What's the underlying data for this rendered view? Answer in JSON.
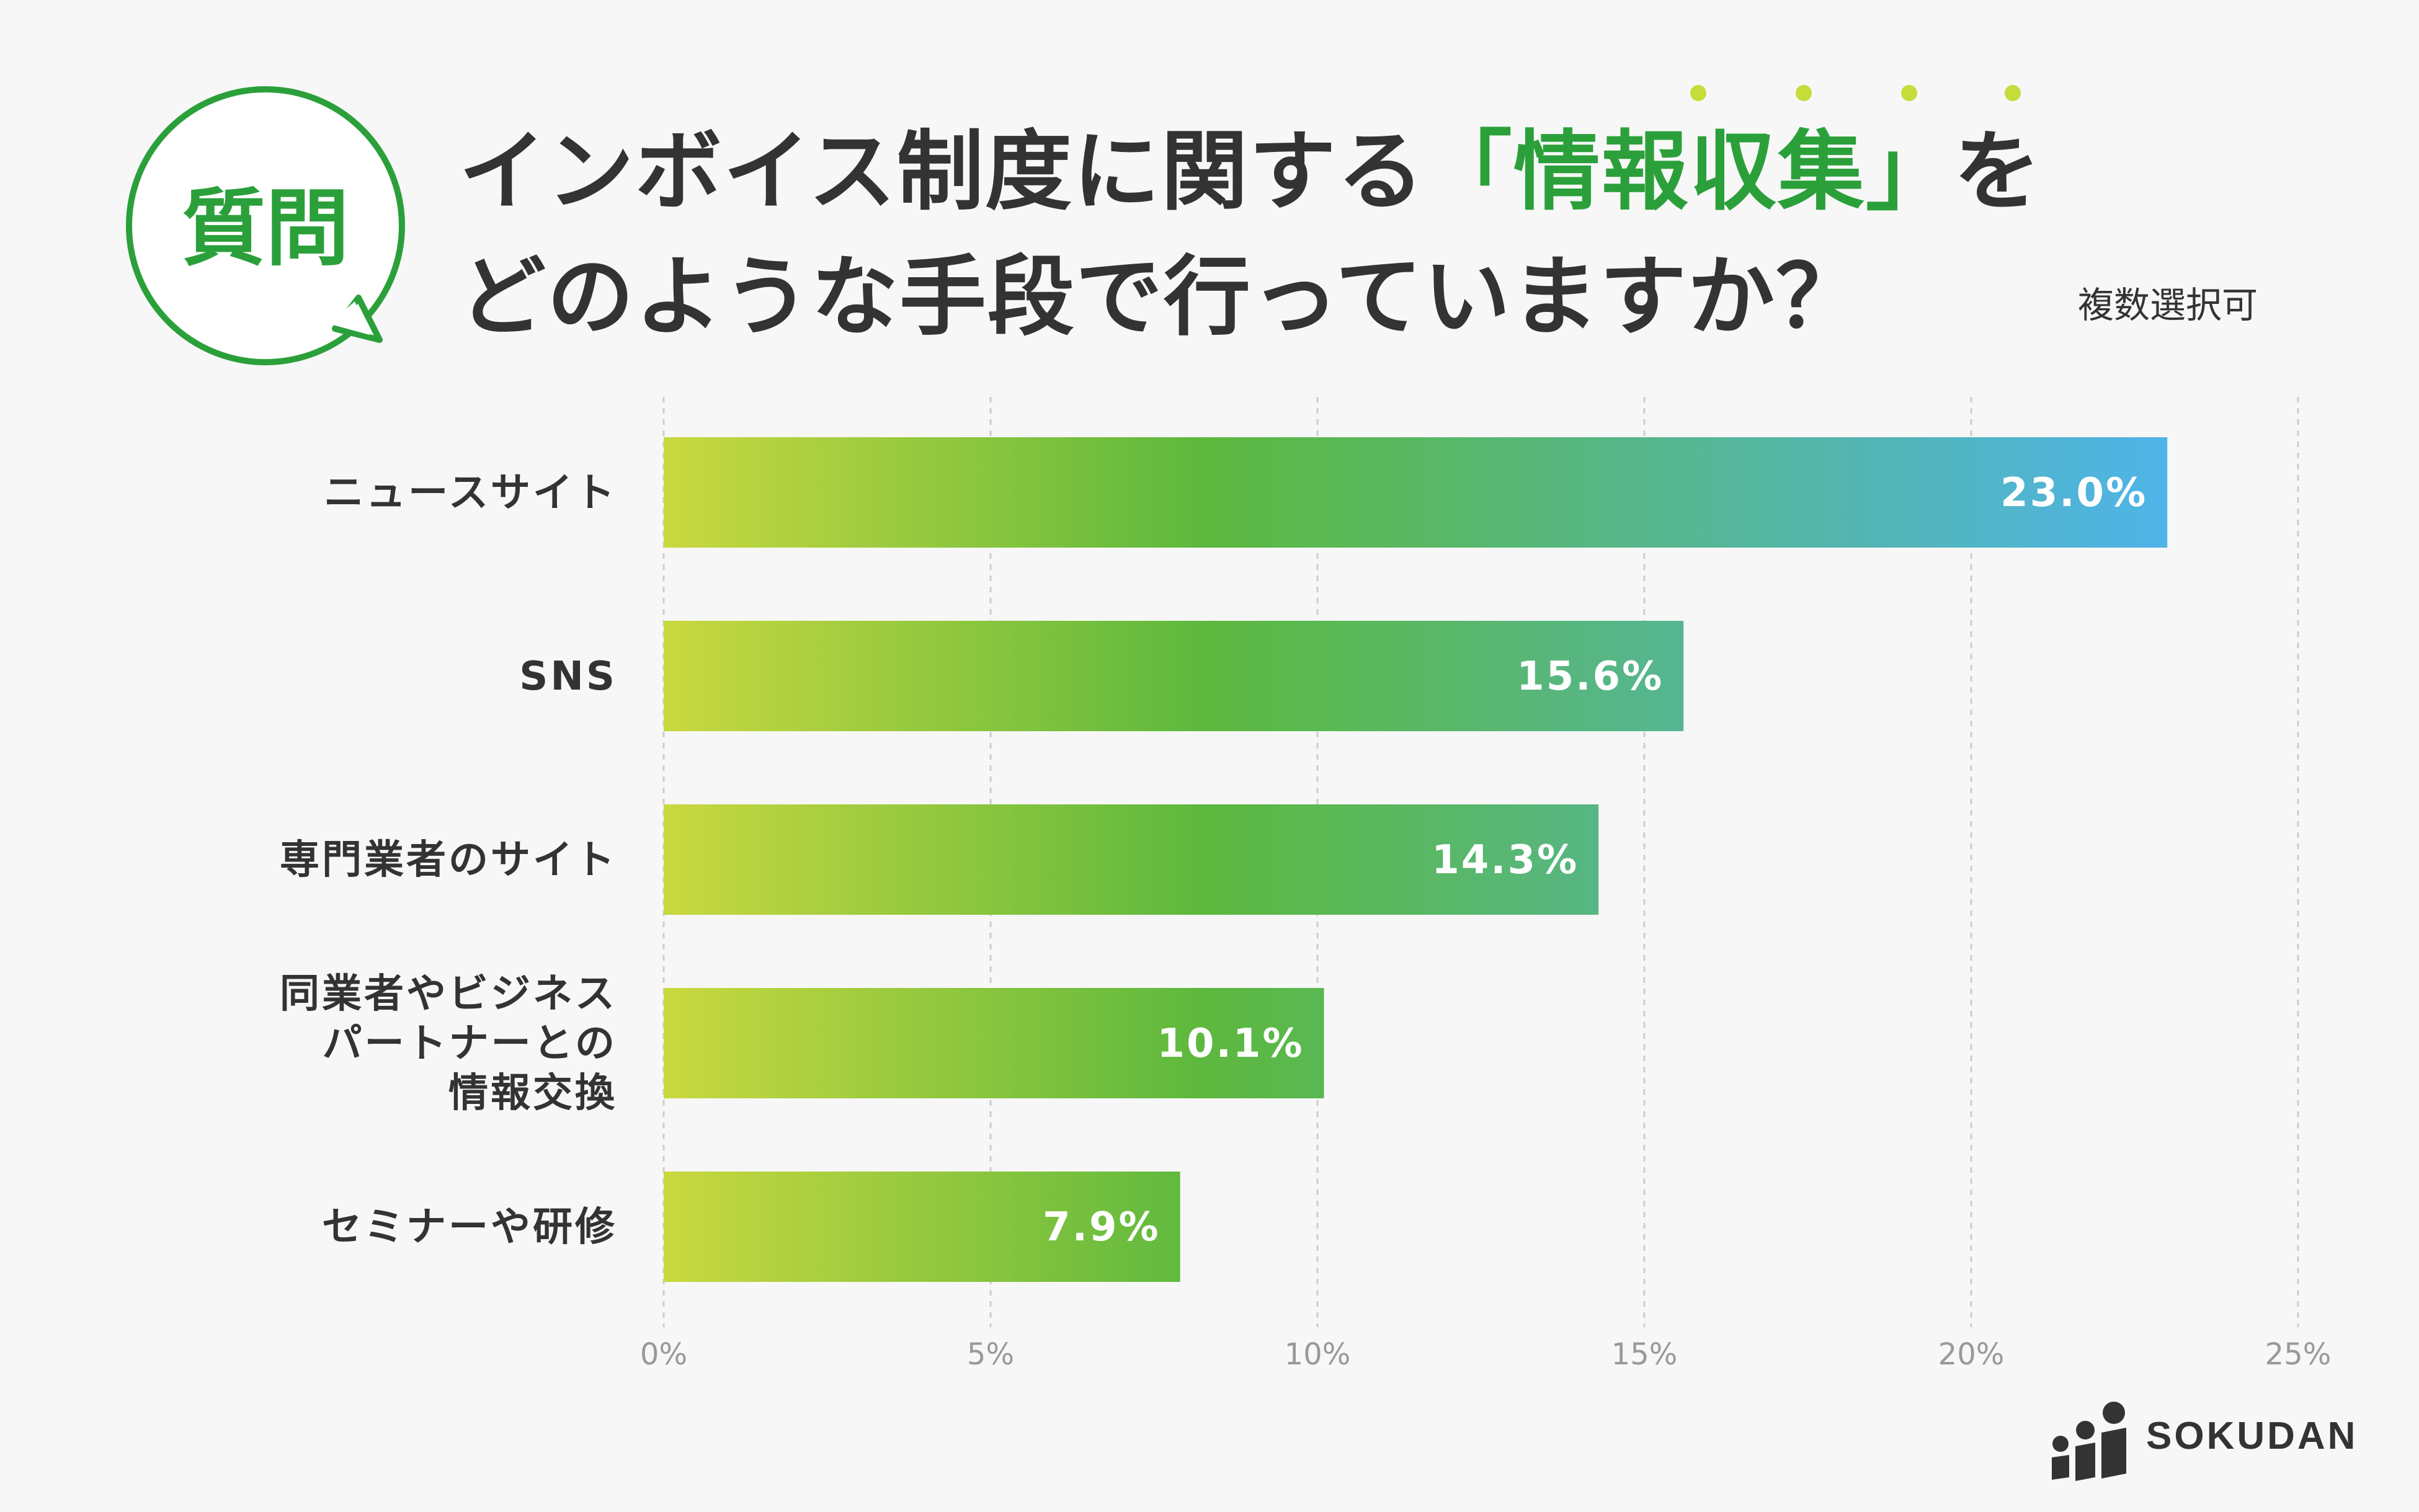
{
  "badge": {
    "label": "質問"
  },
  "title": {
    "line1_before": "インボイス制度に関する",
    "line1_open": "「",
    "line1_highlight": "情報収集",
    "line1_close": "」",
    "line1_after": "を",
    "line2": "どのような手段で行っていますか？"
  },
  "note": "複数選択可",
  "colors": {
    "text": "#333333",
    "highlight": "#2ba03a",
    "dots": "#c5dc3b",
    "grad_start": "#c9d83f",
    "grad_mid": "#5cb83e",
    "grad_end": "#4fb4ea",
    "grid": "#cccccc",
    "tick": "#999999",
    "logo": "#333333"
  },
  "chart_data": {
    "type": "bar",
    "orientation": "horizontal",
    "categories": [
      [
        "ニュースサイト"
      ],
      [
        "SNS"
      ],
      [
        "専門業者のサイト"
      ],
      [
        "同業者やビジネス",
        "パートナーとの",
        "情報交換"
      ],
      [
        "セミナーや研修"
      ]
    ],
    "values": [
      23.0,
      15.6,
      14.3,
      10.1,
      7.9
    ],
    "value_labels": [
      "23.0%",
      "15.6%",
      "14.3%",
      "10.1%",
      "7.9%"
    ],
    "xlim": [
      0,
      25
    ],
    "ticks": [
      0,
      5,
      10,
      15,
      20,
      25
    ],
    "tick_labels": [
      "0%",
      "5%",
      "10%",
      "15%",
      "20%",
      "25%"
    ],
    "grid": true,
    "unit": "%"
  },
  "logo": {
    "text": "SOKUDAN"
  }
}
